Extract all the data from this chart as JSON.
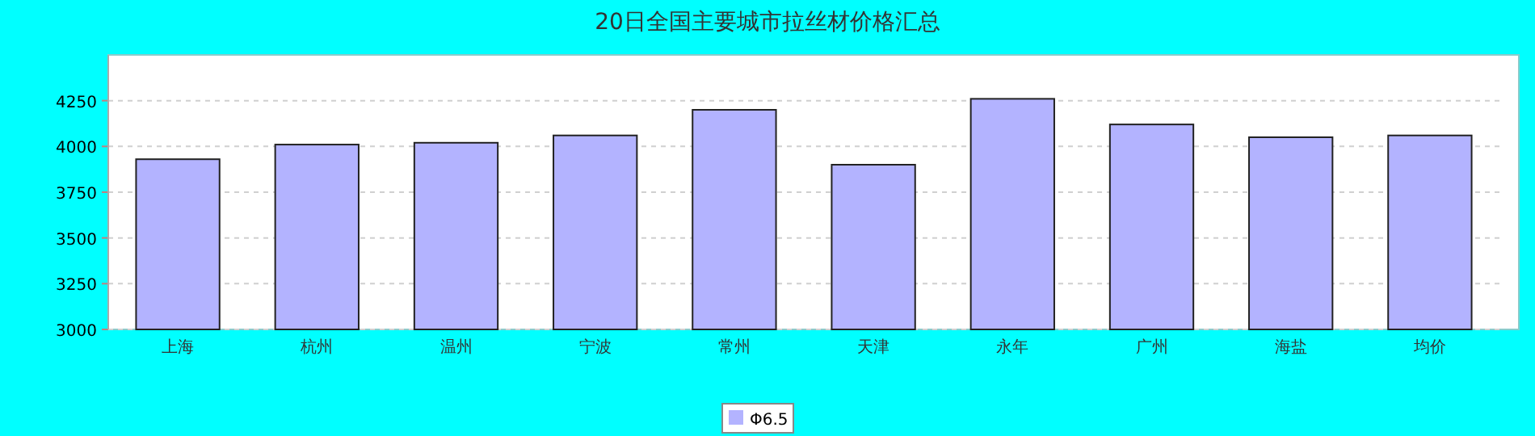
{
  "chart_data": {
    "type": "bar",
    "title": "20日全国主要城市拉丝材价格汇总",
    "categories": [
      "上海",
      "杭州",
      "温州",
      "宁波",
      "常州",
      "天津",
      "永年",
      "广州",
      "海盐",
      "均价"
    ],
    "series": [
      {
        "name": "Φ6.5",
        "color": "#b3b3ff",
        "values": [
          3930,
          4010,
          4020,
          4060,
          4200,
          3900,
          4260,
          4120,
          4050,
          4060
        ]
      }
    ],
    "ylim": [
      3000,
      4500
    ],
    "yticks": [
      3000,
      3250,
      3500,
      3750,
      4000,
      4250
    ],
    "grid": "y",
    "legend": "bottom"
  }
}
